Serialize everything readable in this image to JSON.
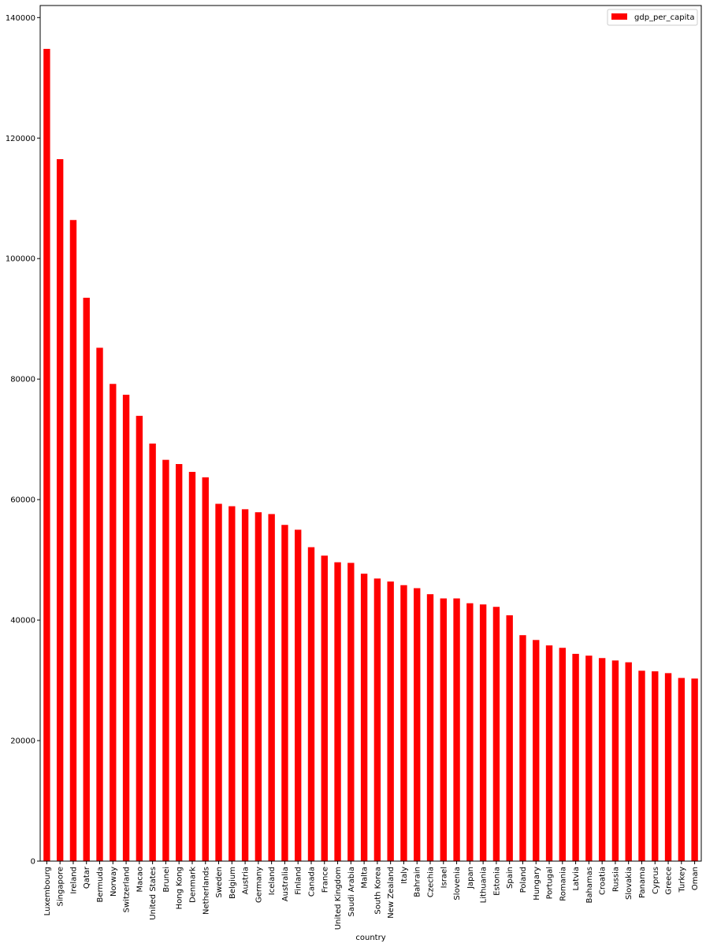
{
  "chart_data": {
    "type": "bar",
    "xlabel": "country",
    "ylabel": "",
    "ylim": [
      0,
      142000
    ],
    "yticks": [
      0,
      20000,
      40000,
      60000,
      80000,
      100000,
      120000,
      140000
    ],
    "ytick_labels": [
      "0",
      "20000",
      "40000",
      "60000",
      "80000",
      "100000",
      "120000",
      "140000"
    ],
    "grid": false,
    "legend": {
      "position": "top-right",
      "entries": [
        "gdp_per_capita"
      ]
    },
    "categories": [
      "Luxembourg",
      "Singapore",
      "Ireland",
      "Qatar",
      "Bermuda",
      "Norway",
      "Switzerland",
      "Macao",
      "United States",
      "Brunei",
      "Hong Kong",
      "Denmark",
      "Netherlands",
      "Sweden",
      "Belgium",
      "Austria",
      "Germany",
      "Iceland",
      "Australia",
      "Finland",
      "Canada",
      "France",
      "United Kingdom",
      "Saudi Arabia",
      "Malta",
      "South Korea",
      "New Zealand",
      "Italy",
      "Bahrain",
      "Czechia",
      "Israel",
      "Slovenia",
      "Japan",
      "Lithuania",
      "Estonia",
      "Spain",
      "Poland",
      "Hungary",
      "Portugal",
      "Romania",
      "Latvia",
      "Bahamas",
      "Croatia",
      "Russia",
      "Slovakia",
      "Panama",
      "Cyprus",
      "Greece",
      "Turkey",
      "Oman"
    ],
    "series": [
      {
        "name": "gdp_per_capita",
        "color": "#ff0000",
        "values": [
          134800,
          116500,
          106400,
          93500,
          85200,
          79200,
          77400,
          73900,
          69300,
          66600,
          65900,
          64600,
          63700,
          59300,
          58900,
          58400,
          57900,
          57600,
          55800,
          55000,
          52100,
          50700,
          49600,
          49500,
          47700,
          46900,
          46400,
          45800,
          45300,
          44300,
          43600,
          43600,
          42800,
          42600,
          42200,
          40800,
          37500,
          36700,
          35800,
          35400,
          34400,
          34100,
          33700,
          33300,
          33000,
          31600,
          31500,
          31200,
          30400,
          30300
        ]
      }
    ]
  }
}
